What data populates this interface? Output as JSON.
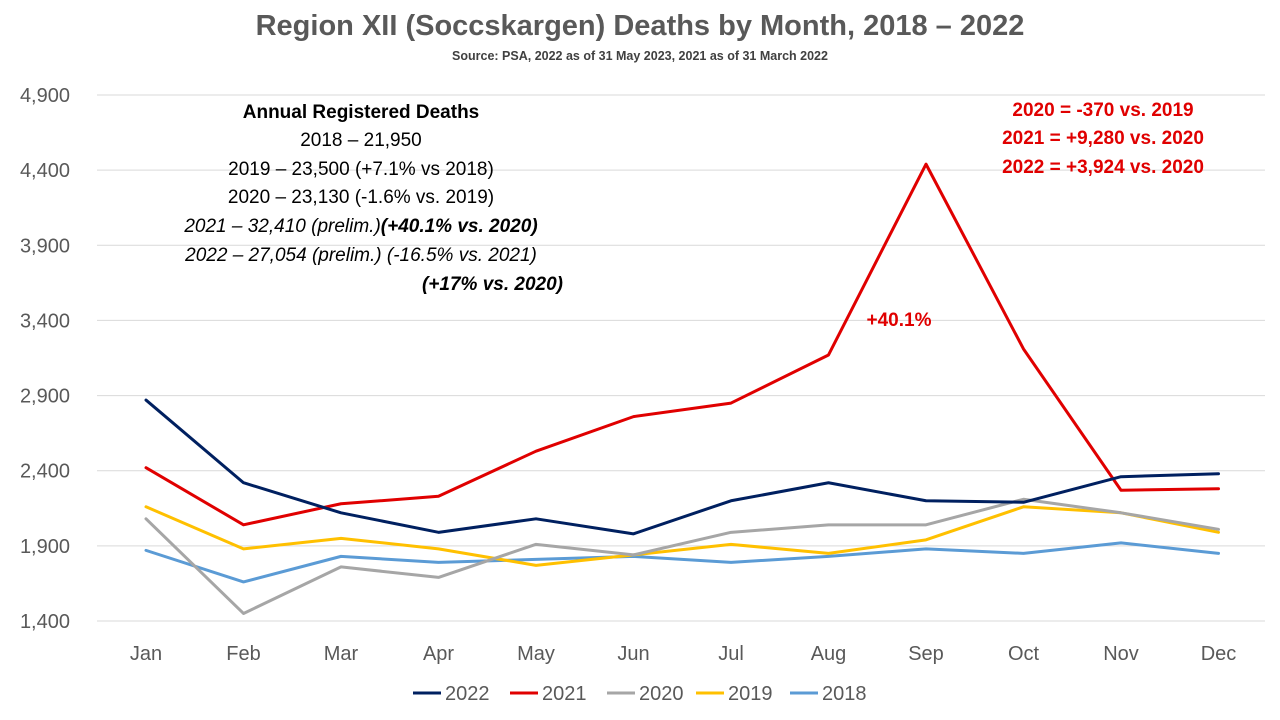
{
  "chart_data": {
    "type": "line",
    "title": "Region XII (Soccskargen) Deaths by Month, 2018 – 2022",
    "subtitle": "Source: PSA, 2022 as of 31 May 2023, 2021 as of 31 March 2022",
    "xlabel": "",
    "ylabel": "",
    "categories": [
      "Jan",
      "Feb",
      "Mar",
      "Apr",
      "May",
      "Jun",
      "Jul",
      "Aug",
      "Sep",
      "Oct",
      "Nov",
      "Dec"
    ],
    "ylim": [
      1400,
      4900
    ],
    "yticks": [
      1400,
      1900,
      2400,
      2900,
      3400,
      3900,
      4400,
      4900
    ],
    "ytick_labels": [
      "1,400",
      "1,900",
      "2,400",
      "2,900",
      "3,400",
      "3,900",
      "4,400",
      "4,900"
    ],
    "grid": true,
    "legend_position": "bottom",
    "series": [
      {
        "name": "2022",
        "color": "#002060",
        "values": [
          2870,
          2320,
          2120,
          1990,
          2080,
          1980,
          2200,
          2320,
          2200,
          2190,
          2360,
          2380
        ]
      },
      {
        "name": "2021",
        "color": "#e00000",
        "values": [
          2420,
          2040,
          2180,
          2230,
          2530,
          2760,
          2850,
          3170,
          4440,
          3210,
          2270,
          2280
        ]
      },
      {
        "name": "2020",
        "color": "#a6a6a6",
        "values": [
          2080,
          1450,
          1760,
          1690,
          1910,
          1840,
          1990,
          2040,
          2040,
          2210,
          2120,
          2010
        ]
      },
      {
        "name": "2019",
        "color": "#ffc000",
        "values": [
          2160,
          1880,
          1950,
          1880,
          1770,
          1840,
          1910,
          1850,
          1940,
          2160,
          2120,
          1990
        ]
      },
      {
        "name": "2018",
        "color": "#5b9bd5",
        "values": [
          1870,
          1660,
          1830,
          1790,
          1810,
          1830,
          1790,
          1830,
          1880,
          1850,
          1920,
          1850
        ]
      }
    ],
    "annotations": {
      "annual_header": "Annual Registered Deaths",
      "annual_2018": "2018 – 21,950",
      "annual_2019": "2019 – 23,500 (+7.1% vs 2018)",
      "annual_2020": "2020 – 23,130 (-1.6% vs. 2019)",
      "annual_2021_a": "2021 – 32,410 (prelim.)",
      "annual_2021_b": "(+40.1% vs. 2020)",
      "annual_2022": "2022 – 27,054 (prelim.) (-16.5% vs. 2021)",
      "annual_2022_b": "(+17% vs. 2020)",
      "diff_2020": "2020 = -370 vs. 2019",
      "diff_2021": "2021 = +9,280 vs. 2020",
      "diff_2022": "2022 = +3,924 vs. 2020",
      "peak_label": "+40.1%"
    }
  }
}
